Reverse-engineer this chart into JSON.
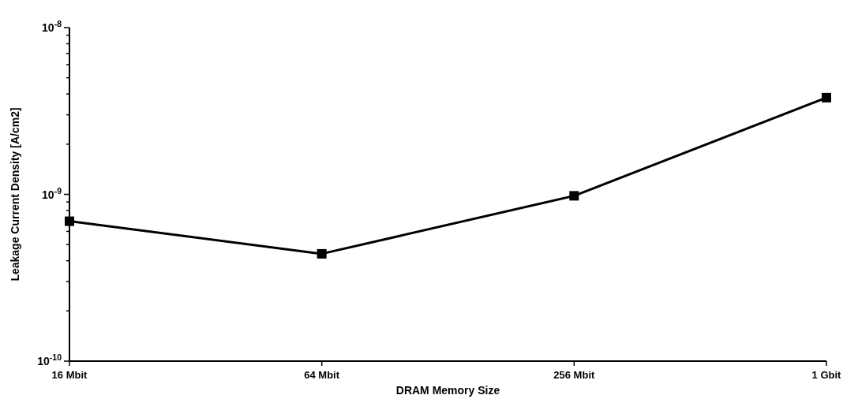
{
  "chart_data": {
    "type": "line",
    "xlabel": "DRAM Memory Size",
    "ylabel": "Leakage Current Density [A/cm2]",
    "categories": [
      "16 Mbit",
      "64 Mbit",
      "256 Mbit",
      "1 Gbit"
    ],
    "series": [
      {
        "color": "#000000",
        "values": [
          6.9e-10,
          4.4e-10,
          9.8e-10,
          3.8e-09
        ]
      }
    ],
    "log": "y",
    "ylim": [
      1e-10,
      1e-08
    ],
    "yticks": [
      {
        "value": 1e-10,
        "label": "10$^{-10}$"
      },
      {
        "value": 2e-10,
        "label": null
      },
      {
        "value": 3e-10,
        "label": null
      },
      {
        "value": 4e-10,
        "label": null
      },
      {
        "value": 5e-10,
        "label": null
      },
      {
        "value": 6e-10,
        "label": null
      },
      {
        "value": 7e-10,
        "label": null
      },
      {
        "value": 8e-10,
        "label": null
      },
      {
        "value": 9e-10,
        "label": null
      },
      {
        "value": 1e-09,
        "label": "10$^{-9}$"
      },
      {
        "value": 2e-09,
        "label": null
      },
      {
        "value": 3e-09,
        "label": null
      },
      {
        "value": 4e-09,
        "label": null
      },
      {
        "value": 5e-09,
        "label": null
      },
      {
        "value": 6e-09,
        "label": null
      },
      {
        "value": 7e-09,
        "label": null
      },
      {
        "value": 8e-09,
        "label": null
      },
      {
        "value": 9e-09,
        "label": null
      },
      {
        "value": 1e-08,
        "label": "10$^{-8}$"
      }
    ],
    "marker": "square",
    "line_style": "solid",
    "grid": false
  }
}
